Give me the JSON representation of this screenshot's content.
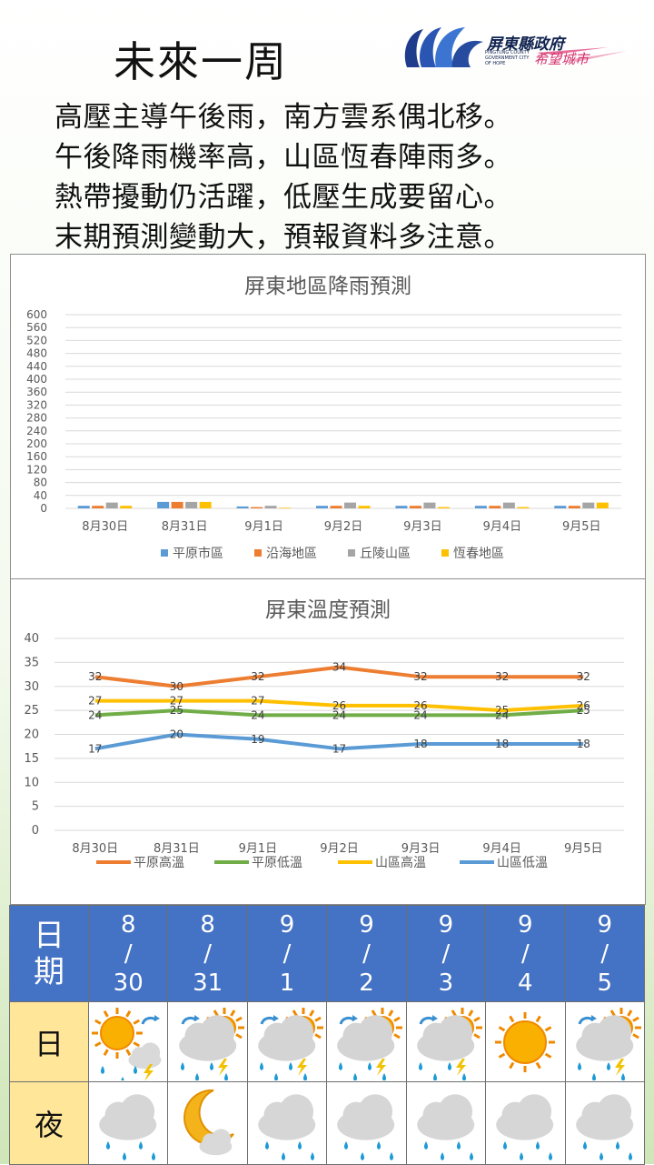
{
  "header": {
    "title": "未來一周",
    "logo_name": "屏東縣政府",
    "logo_slogan": "希望城市",
    "logo_small": "PINGTUNG COUNTY GOVERNMENT CITY OF HOPE"
  },
  "poem": [
    "高壓主導午後雨，南方雲系偶北移。",
    "午後降雨機率高，山區恆春陣雨多。",
    "熱帶擾動仍活躍，低壓生成要留心。",
    "末期預測變動大，預報資料多注意。"
  ],
  "colors": {
    "blue": "#5b9bd5",
    "orange": "#ed7d31",
    "gray": "#a5a5a5",
    "gold": "#ffc000",
    "green": "#70ad47",
    "table_header": "#4472c4",
    "table_label": "#ffe699"
  },
  "chart_data": [
    {
      "type": "bar",
      "title": "屏東地區降雨預測",
      "categories": [
        "8月30日",
        "8月31日",
        "9月1日",
        "9月2日",
        "9月3日",
        "9月4日",
        "9月5日"
      ],
      "ylim": [
        0,
        600
      ],
      "yticks": [
        0,
        40,
        80,
        120,
        160,
        200,
        240,
        280,
        320,
        360,
        400,
        440,
        480,
        520,
        560,
        600
      ],
      "grid": true,
      "legend": "bottom",
      "series": [
        {
          "name": "平原市區",
          "color": "#5b9bd5",
          "values": [
            8,
            20,
            6,
            8,
            8,
            8,
            8
          ]
        },
        {
          "name": "沿海地區",
          "color": "#ed7d31",
          "values": [
            8,
            20,
            4,
            8,
            8,
            8,
            8
          ]
        },
        {
          "name": "丘陵山區",
          "color": "#a5a5a5",
          "values": [
            18,
            20,
            8,
            18,
            18,
            18,
            18
          ]
        },
        {
          "name": "恆春地區",
          "color": "#ffc000",
          "values": [
            8,
            20,
            2,
            8,
            4,
            4,
            18
          ]
        }
      ]
    },
    {
      "type": "line",
      "title": "屏東溫度預測",
      "categories": [
        "8月30日",
        "8月31日",
        "9月1日",
        "9月2日",
        "9月3日",
        "9月4日",
        "9月5日"
      ],
      "ylim": [
        0,
        40
      ],
      "yticks": [
        0,
        5,
        10,
        15,
        20,
        25,
        30,
        35,
        40
      ],
      "grid": true,
      "legend": "bottom",
      "series": [
        {
          "name": "平原高溫",
          "color": "#ed7d31",
          "values": [
            32,
            30,
            32,
            34,
            32,
            32,
            32
          ]
        },
        {
          "name": "平原低溫",
          "color": "#70ad47",
          "values": [
            24,
            25,
            24,
            24,
            24,
            24,
            25
          ]
        },
        {
          "name": "山區高溫",
          "color": "#ffc000",
          "values": [
            27,
            27,
            27,
            26,
            26,
            25,
            26
          ]
        },
        {
          "name": "山區低溫",
          "color": "#5b9bd5",
          "values": [
            17,
            20,
            19,
            17,
            18,
            18,
            18
          ]
        }
      ]
    }
  ],
  "table": {
    "header_label": [
      "日",
      "期"
    ],
    "dates": [
      [
        "8",
        "/",
        "30"
      ],
      [
        "8",
        "/",
        "31"
      ],
      [
        "9",
        "/",
        "1"
      ],
      [
        "9",
        "/",
        "2"
      ],
      [
        "9",
        "/",
        "3"
      ],
      [
        "9",
        "/",
        "4"
      ],
      [
        "9",
        "/",
        "5"
      ]
    ],
    "day_label": "日",
    "night_label": "夜",
    "day_icons": [
      "sunny-to-cloudy-thunder-icon",
      "cloudy-thunder-rain-icon",
      "cloudy-thunder-rain-icon",
      "cloudy-thunder-rain-icon",
      "cloudy-thunder-rain-icon",
      "sunny-icon",
      "cloudy-thunder-rain-icon"
    ],
    "night_icons": [
      "cloudy-rain-icon",
      "moon-cloud-icon",
      "cloudy-rain-icon",
      "cloudy-rain-icon",
      "cloudy-rain-icon",
      "cloudy-rain-icon",
      "cloudy-rain-icon"
    ]
  }
}
